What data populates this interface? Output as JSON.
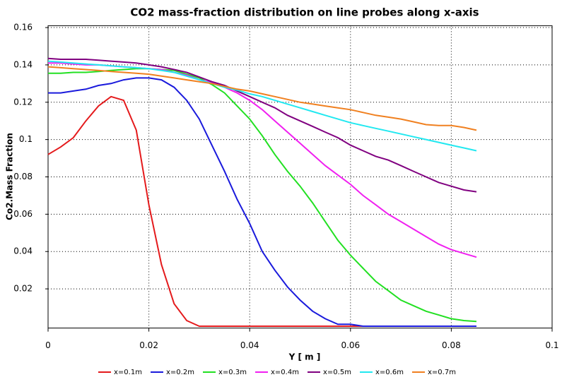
{
  "chart_data": {
    "type": "line",
    "title": "CO2 mass-fraction distribution on line probes along x-axis",
    "x_label": "Y [ m ]",
    "y_label": "Co2.Mass Fraction",
    "x": [
      0,
      0.0025,
      0.005,
      0.0075,
      0.01,
      0.0125,
      0.015,
      0.0175,
      0.02,
      0.0225,
      0.025,
      0.0275,
      0.03,
      0.0325,
      0.035,
      0.0375,
      0.04,
      0.0425,
      0.045,
      0.0475,
      0.05,
      0.0525,
      0.055,
      0.0575,
      0.06,
      0.0625,
      0.065,
      0.0675,
      0.07,
      0.0725,
      0.075,
      0.0775,
      0.08,
      0.0825,
      0.085
    ],
    "series": [
      {
        "name": "x=0.1m",
        "color": "#e41a1c",
        "values": [
          0.092,
          0.096,
          0.101,
          0.11,
          0.118,
          0.123,
          0.121,
          0.105,
          0.065,
          0.033,
          0.012,
          0.003,
          0,
          0,
          0,
          0,
          0,
          0,
          0,
          0,
          0,
          0,
          0,
          0,
          0,
          0,
          0,
          0,
          0,
          0,
          0,
          0,
          0,
          0,
          0
        ]
      },
      {
        "name": "x=0.2m",
        "color": "#1a1adc",
        "values": [
          0.125,
          0.125,
          0.126,
          0.127,
          0.129,
          0.13,
          0.132,
          0.133,
          0.133,
          0.132,
          0.128,
          0.121,
          0.111,
          0.097,
          0.083,
          0.068,
          0.055,
          0.04,
          0.03,
          0.021,
          0.014,
          0.008,
          0.004,
          0.001,
          0.001,
          0,
          0,
          0,
          0,
          0,
          0,
          0,
          0,
          0,
          0
        ]
      },
      {
        "name": "x=0.3m",
        "color": "#22e022",
        "values": [
          0.1355,
          0.1355,
          0.136,
          0.136,
          0.1365,
          0.137,
          0.1375,
          0.138,
          0.138,
          0.1375,
          0.137,
          0.135,
          0.133,
          0.1295,
          0.125,
          0.118,
          0.111,
          0.102,
          0.092,
          0.083,
          0.075,
          0.066,
          0.056,
          0.046,
          0.038,
          0.031,
          0.024,
          0.019,
          0.014,
          0.011,
          0.008,
          0.006,
          0.004,
          0.003,
          0.0025
        ]
      },
      {
        "name": "x=0.4m",
        "color": "#f020f0",
        "values": [
          0.141,
          0.141,
          0.1405,
          0.14,
          0.14,
          0.1395,
          0.139,
          0.1385,
          0.138,
          0.1375,
          0.136,
          0.1345,
          0.132,
          0.1305,
          0.128,
          0.125,
          0.121,
          0.116,
          0.11,
          0.104,
          0.098,
          0.092,
          0.086,
          0.081,
          0.076,
          0.07,
          0.065,
          0.06,
          0.056,
          0.052,
          0.048,
          0.044,
          0.041,
          0.039,
          0.037
        ]
      },
      {
        "name": "x=0.5m",
        "color": "#800080",
        "values": [
          0.1435,
          0.143,
          0.143,
          0.143,
          0.1425,
          0.142,
          0.1415,
          0.141,
          0.14,
          0.139,
          0.1375,
          0.136,
          0.1335,
          0.131,
          0.129,
          0.126,
          0.123,
          0.12,
          0.117,
          0.113,
          0.11,
          0.107,
          0.104,
          0.101,
          0.097,
          0.094,
          0.091,
          0.089,
          0.086,
          0.083,
          0.08,
          0.077,
          0.075,
          0.073,
          0.072
        ]
      },
      {
        "name": "x=0.6m",
        "color": "#22e8f0",
        "values": [
          0.142,
          0.1415,
          0.141,
          0.1405,
          0.14,
          0.1395,
          0.139,
          0.1385,
          0.138,
          0.137,
          0.136,
          0.134,
          0.132,
          0.13,
          0.128,
          0.1265,
          0.1245,
          0.123,
          0.121,
          0.119,
          0.117,
          0.115,
          0.113,
          0.111,
          0.109,
          0.1075,
          0.106,
          0.1045,
          0.103,
          0.1015,
          0.1,
          0.0985,
          0.097,
          0.0955,
          0.094
        ]
      },
      {
        "name": "x=0.7m",
        "color": "#f08020",
        "values": [
          0.139,
          0.1385,
          0.138,
          0.1375,
          0.137,
          0.1365,
          0.136,
          0.1355,
          0.135,
          0.134,
          0.133,
          0.132,
          0.131,
          0.13,
          0.1285,
          0.127,
          0.126,
          0.1245,
          0.123,
          0.1215,
          0.12,
          0.119,
          0.118,
          0.117,
          0.116,
          0.1145,
          0.113,
          0.112,
          0.111,
          0.1095,
          0.108,
          0.1075,
          0.1075,
          0.1065,
          0.105
        ]
      }
    ],
    "xlim": [
      0,
      0.1
    ],
    "ylim": [
      -0.001,
      0.161
    ],
    "xticks": [
      0,
      0.02,
      0.04,
      0.06,
      0.08,
      0.1
    ],
    "yticks": [
      0.02,
      0.04,
      0.06,
      0.08,
      0.1,
      0.12,
      0.14,
      0.16
    ],
    "grid": true,
    "legend": "bottom"
  }
}
